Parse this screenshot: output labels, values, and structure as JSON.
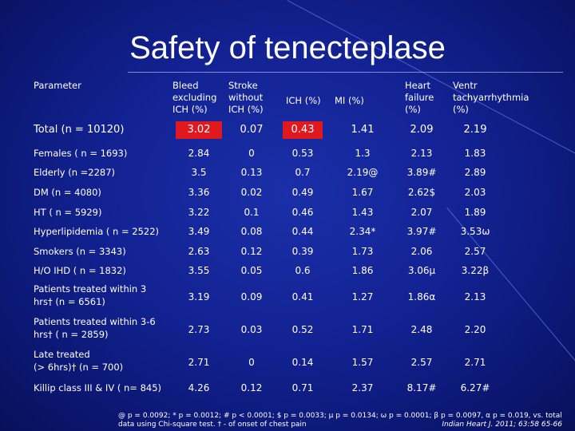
{
  "title": "Safety of tenecteplase",
  "headers": {
    "parameter": "Parameter",
    "bleed": [
      "Bleed",
      "excluding",
      "ICH (%)"
    ],
    "stroke": [
      "Stroke",
      "without",
      "ICH (%)"
    ],
    "ich": "ICH (%)",
    "mi": "MI (%)",
    "hf": [
      "Heart",
      "failure",
      "(%)"
    ],
    "vt": [
      "Ventr",
      "tachyarrhythmia",
      "(%)"
    ]
  },
  "rows": [
    {
      "label": "Total (n = 10120)",
      "values": [
        "3.02",
        "0.07",
        "0.43",
        "1.41",
        "2.09",
        "2.19"
      ]
    },
    {
      "label": "Females ( n = 1693)",
      "values": [
        "2.84",
        "0",
        "0.53",
        "1.3",
        "2.13",
        "1.83"
      ]
    },
    {
      "label": "Elderly  (n =2287)",
      "values": [
        "3.5",
        "0.13",
        "0.7",
        "2.19@",
        "3.89#",
        "2.89"
      ]
    },
    {
      "label": "DM (n = 4080)",
      "values": [
        "3.36",
        "0.02",
        "0.49",
        "1.67",
        "2.62$",
        "2.03"
      ]
    },
    {
      "label": "HT  ( n = 5929)",
      "values": [
        "3.22",
        "0.1",
        "0.46",
        "1.43",
        "2.07",
        "1.89"
      ]
    },
    {
      "label": "Hyperlipidemia  ( n = 2522)",
      "values": [
        "3.49",
        "0.08",
        "0.44",
        "2.34*",
        "3.97#",
        "3.53ω"
      ]
    },
    {
      "label": "Smokers  (n = 3343)",
      "values": [
        "2.63",
        "0.12",
        "0.39",
        "1.73",
        "2.06",
        "2.57"
      ]
    },
    {
      "label": "H/O IHD  ( n = 1832)",
      "values": [
        "3.55",
        "0.05",
        "0.6",
        "1.86",
        "3.06µ",
        "3.22β"
      ]
    },
    {
      "label_lines": [
        "Patients treated within 3",
        "hrs† (n  = 6561)"
      ],
      "values": [
        "3.19",
        "0.09",
        "0.41",
        "1.27",
        "1.86α",
        "2.13"
      ]
    },
    {
      "label_lines": [
        "Patients treated within 3-6",
        "hrs† ( n = 2859)"
      ],
      "values": [
        "2.73",
        "0.03",
        "0.52",
        "1.71",
        "2.48",
        "2.20"
      ]
    },
    {
      "label_lines": [
        "Late treated",
        "(> 6hrs)†  (n = 700)"
      ],
      "values": [
        "2.71",
        "0",
        "0.14",
        "1.57",
        "2.57",
        "2.71"
      ]
    },
    {
      "label": "Killip class III & IV ( n= 845)",
      "values": [
        "4.26",
        "0.12",
        "0.71",
        "2.37",
        "8.17#",
        "6.27#"
      ]
    }
  ],
  "footnote": "@ p = 0.0092; * p = 0.0012; # p < 0.0001; $ p = 0.0033; µ p = 0.0134; ω p = 0.0001; β p = 0.0097, α p = 0.019, vs. total data using Chi-square test. † - of onset of chest pain",
  "citation": "Indian Heart J. 2011; 63:58 65-66",
  "colors": {
    "background": "#132293",
    "highlight": "#e0191f",
    "text": "#ffffff"
  }
}
